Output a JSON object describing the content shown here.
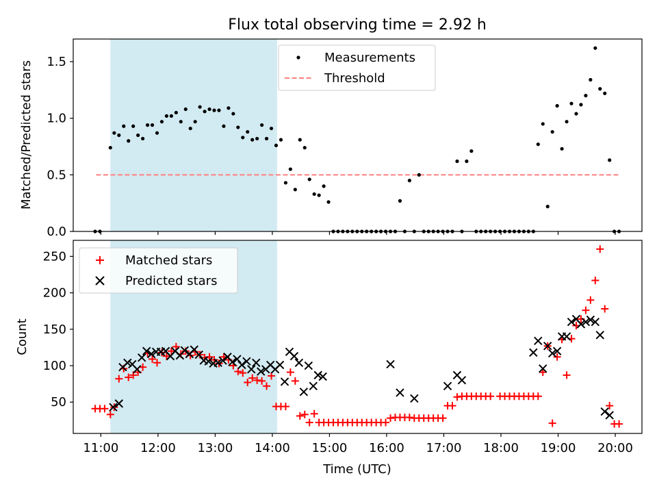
{
  "figure_title": "Flux total observing time = 2.92 h",
  "colors": {
    "shade": "#add8e6",
    "measurement": "#000000",
    "threshold": "#ff7f7f",
    "matched": "#ff0000",
    "predicted": "#000000"
  },
  "chart_data": [
    {
      "type": "scatter",
      "title": "Flux total observing time = 2.92 h",
      "xlabel": "",
      "ylabel": "Matched/Predicted stars",
      "xlim": [
        "10:31",
        "20:28"
      ],
      "ylim": [
        0,
        1.7
      ],
      "yticks": [
        0.0,
        0.5,
        1.0,
        1.5
      ],
      "ytick_labels": [
        "0.0",
        "0.5",
        "1.0",
        "1.5"
      ],
      "xticks": [
        "11:00",
        "12:00",
        "13:00",
        "14:00",
        "15:00",
        "16:00",
        "17:00",
        "18:00",
        "19:00",
        "20:00"
      ],
      "grid": false,
      "legend_position": "upper center",
      "shaded_span": [
        "11:10",
        "14:05"
      ],
      "threshold": {
        "name": "Threshold",
        "value": 0.5,
        "x_range": [
          "10:55",
          "20:05"
        ]
      },
      "series": [
        {
          "name": "Measurements",
          "x": [
            "10:54",
            "10:59",
            "11:10",
            "11:14",
            "11:19",
            "11:24",
            "11:29",
            "11:34",
            "11:39",
            "11:44",
            "11:49",
            "11:54",
            "11:59",
            "12:04",
            "12:09",
            "12:14",
            "12:19",
            "12:24",
            "12:29",
            "12:34",
            "12:39",
            "12:44",
            "12:49",
            "12:54",
            "12:59",
            "13:04",
            "13:09",
            "13:14",
            "13:19",
            "13:24",
            "13:29",
            "13:34",
            "13:39",
            "13:44",
            "13:49",
            "13:54",
            "13:59",
            "14:04",
            "14:09",
            "14:14",
            "14:19",
            "14:24",
            "14:29",
            "14:34",
            "14:39",
            "14:44",
            "14:49",
            "14:54",
            "14:59",
            "15:04",
            "15:09",
            "15:14",
            "15:19",
            "15:24",
            "15:29",
            "15:34",
            "15:39",
            "15:44",
            "15:49",
            "15:54",
            "15:59",
            "16:04",
            "16:09",
            "16:14",
            "16:19",
            "16:24",
            "16:29",
            "16:34",
            "16:39",
            "16:44",
            "16:49",
            "16:54",
            "16:59",
            "17:04",
            "17:09",
            "17:14",
            "17:19",
            "17:24",
            "17:29",
            "17:34",
            "17:39",
            "17:44",
            "17:49",
            "17:54",
            "17:59",
            "18:04",
            "18:09",
            "18:14",
            "18:19",
            "18:24",
            "18:29",
            "18:34",
            "18:39",
            "18:44",
            "18:49",
            "18:54",
            "18:59",
            "19:04",
            "19:09",
            "19:14",
            "19:19",
            "19:24",
            "19:29",
            "19:34",
            "19:39",
            "19:44",
            "19:49",
            "19:54",
            "19:59",
            "20:04"
          ],
          "y": [
            0,
            0,
            0.74,
            0.87,
            0.85,
            0.93,
            0.8,
            0.93,
            0.85,
            0.82,
            0.94,
            0.94,
            0.87,
            0.97,
            1.02,
            1.02,
            1.05,
            0.97,
            1.08,
            0.91,
            0.97,
            1.1,
            1.06,
            1.08,
            1.07,
            1.07,
            0.93,
            1.09,
            1.04,
            0.92,
            0.83,
            0.88,
            0.81,
            0.82,
            0.94,
            0.82,
            0.91,
            0.76,
            0.81,
            0.43,
            0.55,
            0.37,
            0.81,
            0.74,
            0.46,
            0.33,
            0.32,
            0.4,
            0.26,
            0,
            0,
            0,
            0,
            0,
            0,
            0,
            0,
            0,
            0,
            0,
            0,
            0,
            0,
            0.27,
            0,
            0.45,
            0,
            0.5,
            0,
            0,
            0,
            0,
            0,
            0,
            0,
            0.62,
            0,
            0.62,
            0.71,
            0,
            0,
            0,
            0,
            0,
            0,
            0,
            0,
            0,
            0,
            0,
            0,
            0,
            0.77,
            0.95,
            0.22,
            0.88,
            1.11,
            0.73,
            0.97,
            1.13,
            1.04,
            1.12,
            1.2,
            1.34,
            1.62,
            1.26,
            1.22,
            0.63,
            0,
            0
          ]
        }
      ]
    },
    {
      "type": "scatter",
      "title": "",
      "xlabel": "Time (UTC)",
      "ylabel": "Count",
      "xlim": [
        "10:31",
        "20:28"
      ],
      "ylim": [
        7,
        272
      ],
      "yticks": [
        50,
        100,
        150,
        200,
        250
      ],
      "ytick_labels": [
        "50",
        "100",
        "150",
        "200",
        "250"
      ],
      "xticks": [
        "11:00",
        "12:00",
        "13:00",
        "14:00",
        "15:00",
        "16:00",
        "17:00",
        "18:00",
        "19:00",
        "20:00"
      ],
      "xtick_labels": [
        "11:00",
        "12:00",
        "13:00",
        "14:00",
        "15:00",
        "16:00",
        "17:00",
        "18:00",
        "19:00",
        "20:00"
      ],
      "grid": false,
      "legend_position": "upper left",
      "shaded_span": [
        "11:10",
        "14:05"
      ],
      "series": [
        {
          "name": "Matched stars",
          "marker": "+",
          "x": [
            "10:54",
            "10:59",
            "11:04",
            "11:10",
            "11:14",
            "11:19",
            "11:24",
            "11:29",
            "11:34",
            "11:39",
            "11:44",
            "11:49",
            "11:54",
            "11:59",
            "12:04",
            "12:09",
            "12:14",
            "12:19",
            "12:24",
            "12:29",
            "12:34",
            "12:39",
            "12:44",
            "12:49",
            "12:54",
            "12:59",
            "13:04",
            "13:09",
            "13:14",
            "13:19",
            "13:24",
            "13:29",
            "13:34",
            "13:39",
            "13:44",
            "13:49",
            "13:54",
            "13:59",
            "14:04",
            "14:09",
            "14:14",
            "14:19",
            "14:24",
            "14:29",
            "14:34",
            "14:39",
            "14:44",
            "14:49",
            "14:54",
            "14:59",
            "15:04",
            "15:09",
            "15:14",
            "15:19",
            "15:24",
            "15:29",
            "15:34",
            "15:39",
            "15:44",
            "15:49",
            "15:54",
            "15:59",
            "16:04",
            "16:09",
            "16:14",
            "16:19",
            "16:24",
            "16:29",
            "16:34",
            "16:39",
            "16:44",
            "16:49",
            "16:54",
            "16:59",
            "17:04",
            "17:09",
            "17:14",
            "17:19",
            "17:24",
            "17:29",
            "17:34",
            "17:39",
            "17:44",
            "17:49",
            "17:59",
            "18:04",
            "18:09",
            "18:14",
            "18:19",
            "18:24",
            "18:29",
            "18:34",
            "18:39",
            "18:44",
            "18:49",
            "18:54",
            "18:59",
            "19:04",
            "19:09",
            "19:14",
            "19:19",
            "19:24",
            "19:29",
            "19:34",
            "19:39",
            "19:44",
            "19:49",
            "19:54",
            "19:59",
            "20:04"
          ],
          "y": [
            41,
            41,
            41,
            33,
            43,
            82,
            96,
            84,
            87,
            91,
            98,
            117,
            109,
            104,
            118,
            113,
            120,
            126,
            116,
            120,
            114,
            119,
            115,
            111,
            112,
            108,
            103,
            112,
            108,
            100,
            92,
            90,
            77,
            83,
            80,
            79,
            72,
            86,
            44,
            44,
            44,
            91,
            79,
            31,
            33,
            22,
            34,
            22,
            22,
            22,
            22,
            22,
            22,
            22,
            22,
            22,
            22,
            22,
            22,
            22,
            22,
            22,
            28,
            29,
            29,
            29,
            29,
            28,
            28,
            28,
            28,
            28,
            28,
            28,
            45,
            45,
            57,
            58,
            58,
            58,
            58,
            58,
            58,
            58,
            58,
            58,
            58,
            58,
            58,
            58,
            58,
            58,
            58,
            91,
            127,
            21,
            112,
            136,
            87,
            137,
            155,
            164,
            176,
            190,
            217,
            260,
            178,
            45,
            20,
            20
          ]
        },
        {
          "name": "Predicted stars",
          "marker": "x",
          "x": [
            "11:13",
            "11:19",
            "11:23",
            "11:28",
            "11:33",
            "11:38",
            "11:43",
            "11:48",
            "11:53",
            "11:58",
            "12:03",
            "12:08",
            "12:13",
            "12:18",
            "12:23",
            "12:28",
            "12:33",
            "12:38",
            "12:43",
            "12:48",
            "12:53",
            "12:58",
            "13:03",
            "13:08",
            "13:13",
            "13:18",
            "13:23",
            "13:28",
            "13:33",
            "13:38",
            "13:43",
            "13:48",
            "13:53",
            "13:58",
            "14:03",
            "14:08",
            "14:13",
            "14:18",
            "14:23",
            "14:28",
            "14:33",
            "14:38",
            "14:43",
            "14:48",
            "14:53",
            "16:04",
            "16:14",
            "16:29",
            "17:04",
            "17:14",
            "17:19",
            "18:34",
            "18:39",
            "18:44",
            "18:49",
            "18:54",
            "18:59",
            "19:04",
            "19:09",
            "19:14",
            "19:19",
            "19:24",
            "19:29",
            "19:34",
            "19:39",
            "19:44",
            "19:49",
            "19:54"
          ],
          "y": [
            43,
            48,
            98,
            104,
            102,
            95,
            111,
            120,
            116,
            119,
            119,
            120,
            113,
            120,
            114,
            121,
            116,
            122,
            115,
            107,
            106,
            103,
            104,
            107,
            112,
            105,
            109,
            101,
            106,
            95,
            104,
            92,
            95,
            101,
            95,
            101,
            78,
            119,
            113,
            104,
            64,
            100,
            72,
            87,
            85,
            102,
            63,
            55,
            72,
            87,
            80,
            118,
            134,
            96,
            127,
            117,
            120,
            140,
            140,
            160,
            164,
            157,
            160,
            163,
            160,
            142,
            37,
            32
          ]
        }
      ]
    }
  ]
}
